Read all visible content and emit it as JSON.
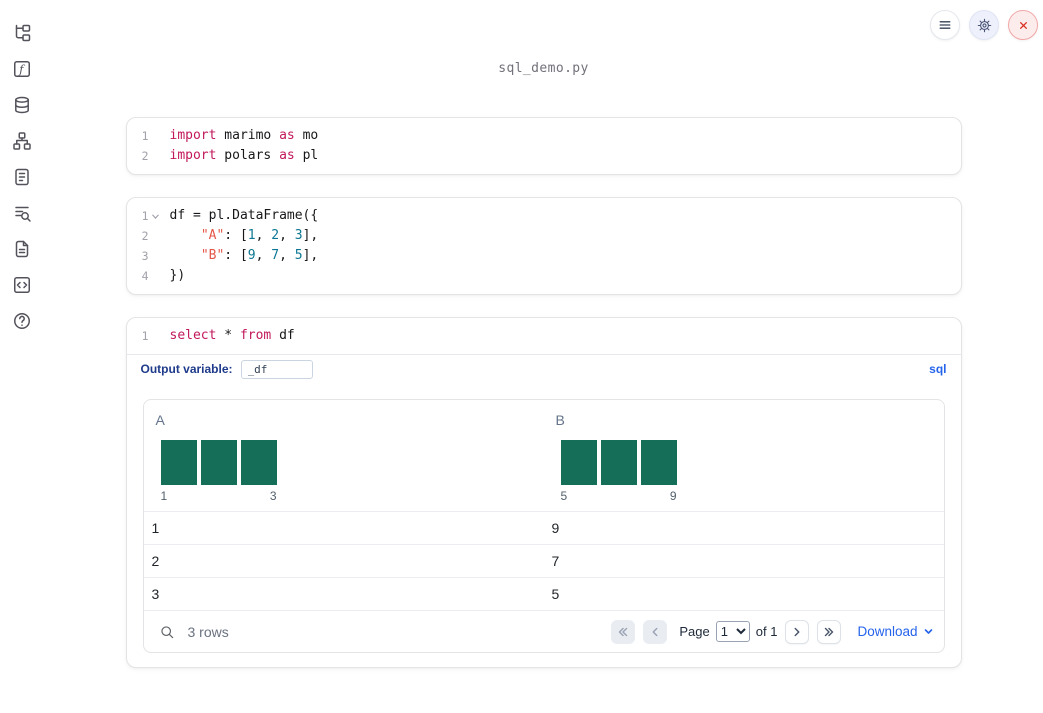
{
  "filename": "sql_demo.py",
  "topbar": {
    "buttons": [
      {
        "name": "menu-button",
        "icon": "hamburger-icon"
      },
      {
        "name": "settings-button",
        "icon": "gear-icon"
      },
      {
        "name": "close-button",
        "icon": "close-icon"
      }
    ]
  },
  "sidebar": {
    "icons": [
      "file-tree-icon",
      "functions-icon",
      "database-icon",
      "dependency-graph-icon",
      "scratchpad-icon",
      "logs-search-icon",
      "documentation-icon",
      "snippets-icon",
      "help-icon"
    ]
  },
  "cells": [
    {
      "kind": "python",
      "lines": [
        {
          "n": "1",
          "tokens": [
            [
              "kw",
              "import"
            ],
            [
              "pl",
              " marimo "
            ],
            [
              "kw",
              "as"
            ],
            [
              "pl",
              " mo"
            ]
          ]
        },
        {
          "n": "2",
          "tokens": [
            [
              "kw",
              "import"
            ],
            [
              "pl",
              " polars "
            ],
            [
              "kw",
              "as"
            ],
            [
              "pl",
              " pl"
            ]
          ]
        }
      ]
    },
    {
      "kind": "python",
      "foldable": true,
      "lines": [
        {
          "n": "1",
          "tokens": [
            [
              "pl",
              "df = pl.DataFrame({"
            ]
          ]
        },
        {
          "n": "2",
          "tokens": [
            [
              "pl",
              "    "
            ],
            [
              "str",
              "\"A\""
            ],
            [
              "pl",
              ": ["
            ],
            [
              "num",
              "1"
            ],
            [
              "pl",
              ", "
            ],
            [
              "num",
              "2"
            ],
            [
              "pl",
              ", "
            ],
            [
              "num",
              "3"
            ],
            [
              "pl",
              "],"
            ]
          ]
        },
        {
          "n": "3",
          "tokens": [
            [
              "pl",
              "    "
            ],
            [
              "str",
              "\"B\""
            ],
            [
              "pl",
              ": ["
            ],
            [
              "num",
              "9"
            ],
            [
              "pl",
              ", "
            ],
            [
              "num",
              "7"
            ],
            [
              "pl",
              ", "
            ],
            [
              "num",
              "5"
            ],
            [
              "pl",
              "],"
            ]
          ]
        },
        {
          "n": "4",
          "tokens": [
            [
              "pl",
              "})"
            ]
          ]
        }
      ]
    },
    {
      "kind": "sql",
      "lines": [
        {
          "n": "1",
          "tokens": [
            [
              "kw",
              "select"
            ],
            [
              "pl",
              " * "
            ],
            [
              "kw",
              "from"
            ],
            [
              "pl",
              " df"
            ]
          ]
        }
      ],
      "output_variable_label": "Output variable:",
      "output_variable_value": "_df",
      "language_badge": "sql"
    }
  ],
  "table": {
    "columns": [
      {
        "name": "A",
        "histogram": {
          "bin_counts": [
            1,
            1,
            1
          ],
          "min_label": "1",
          "max_label": "3"
        }
      },
      {
        "name": "B",
        "histogram": {
          "bin_counts": [
            1,
            1,
            1
          ],
          "min_label": "5",
          "max_label": "9"
        }
      }
    ],
    "rows": [
      [
        "1",
        "9"
      ],
      [
        "2",
        "7"
      ],
      [
        "3",
        "5"
      ]
    ],
    "footer": {
      "row_count": "3 rows",
      "page_label": "Page",
      "page_options": [
        "1"
      ],
      "page_value": "1",
      "of_label": "of 1",
      "download_label": "Download"
    }
  },
  "colors": {
    "accent_blue": "#2563eb",
    "histogram_bar": "#156e58",
    "keyword": "#c2185b",
    "string": "#e45649",
    "number": "#0c7792",
    "close_red": "#d92d20"
  }
}
